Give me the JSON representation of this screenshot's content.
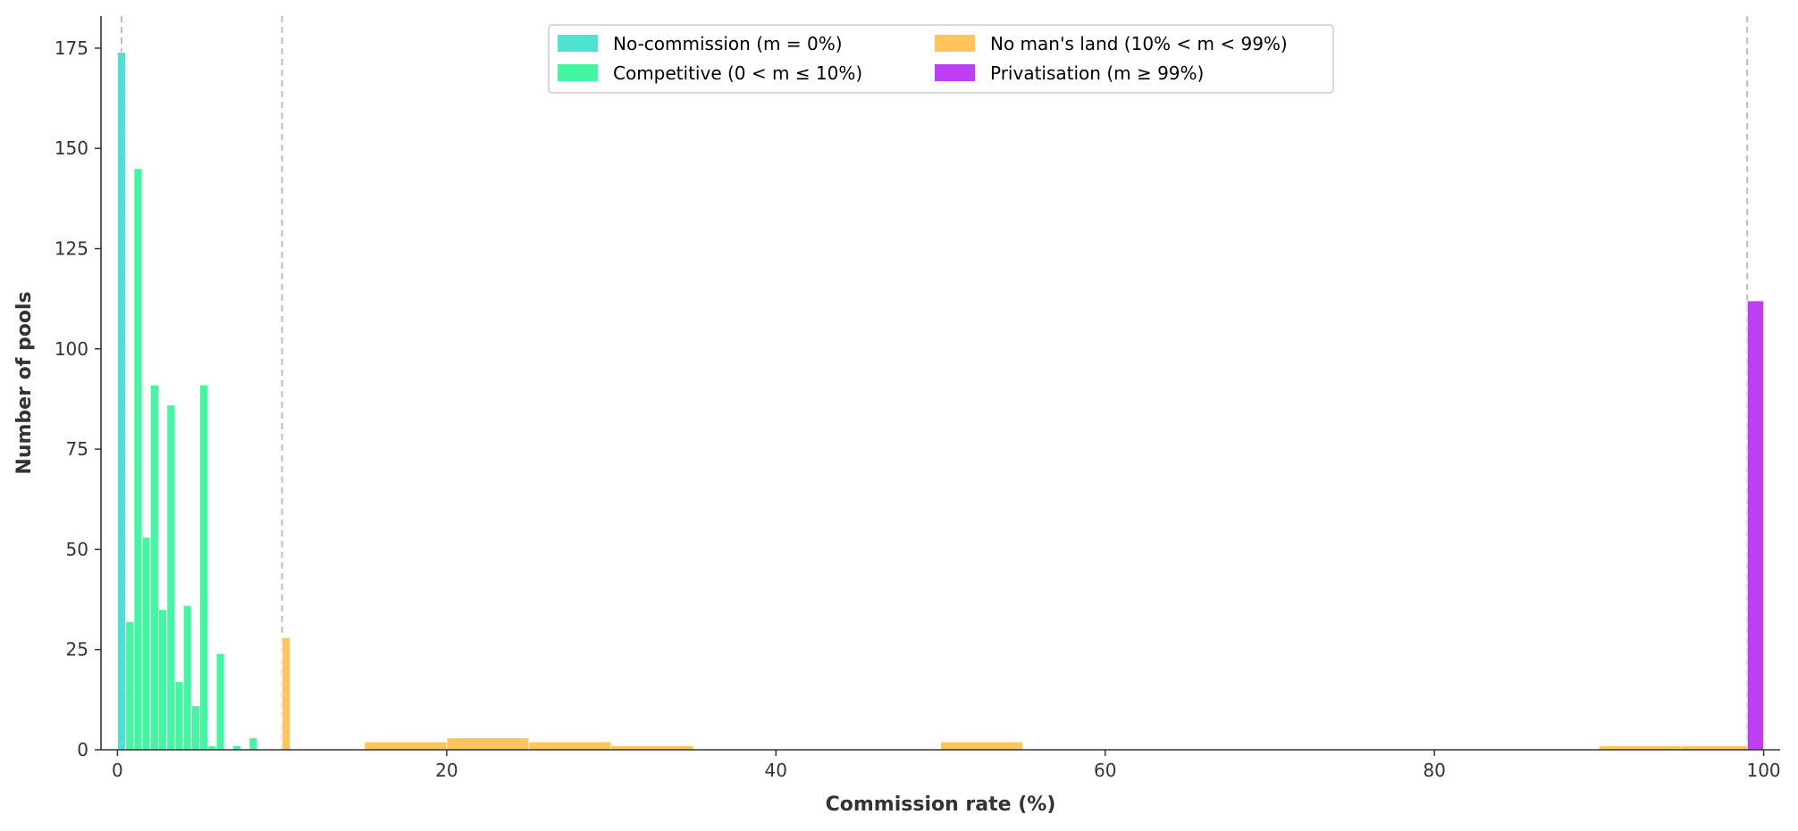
{
  "chart_data": {
    "type": "bar",
    "title": "",
    "xlabel": "Commission rate (%)",
    "ylabel": "Number of pools",
    "xlim": [
      -1,
      101
    ],
    "ylim": [
      0,
      183
    ],
    "xticks": [
      0,
      20,
      40,
      60,
      80,
      100
    ],
    "yticks": [
      0,
      25,
      50,
      75,
      100,
      125,
      150,
      175
    ],
    "grid": false,
    "legend_position": "top-center",
    "legend_columns": 2,
    "thresholds": [
      0.25,
      10,
      99
    ],
    "series": [
      {
        "name": "No-commission (m = 0%)",
        "color": "#40E0D0",
        "bins": [
          {
            "x0": 0,
            "x1": 0.5,
            "count": 174
          }
        ]
      },
      {
        "name": "Competitive (0 < m ≤ 10%)",
        "color": "#33F59A",
        "bins": [
          {
            "x0": 0.5,
            "x1": 1.0,
            "count": 32
          },
          {
            "x0": 1.0,
            "x1": 1.5,
            "count": 145
          },
          {
            "x0": 1.5,
            "x1": 2.0,
            "count": 53
          },
          {
            "x0": 2.0,
            "x1": 2.5,
            "count": 91
          },
          {
            "x0": 2.5,
            "x1": 3.0,
            "count": 35
          },
          {
            "x0": 3.0,
            "x1": 3.5,
            "count": 86
          },
          {
            "x0": 3.5,
            "x1": 4.0,
            "count": 17
          },
          {
            "x0": 4.0,
            "x1": 4.5,
            "count": 36
          },
          {
            "x0": 4.5,
            "x1": 5.0,
            "count": 11
          },
          {
            "x0": 5.0,
            "x1": 5.5,
            "count": 91
          },
          {
            "x0": 5.5,
            "x1": 6.0,
            "count": 1
          },
          {
            "x0": 6.0,
            "x1": 6.5,
            "count": 24
          },
          {
            "x0": 7.0,
            "x1": 7.5,
            "count": 1
          },
          {
            "x0": 8.0,
            "x1": 8.5,
            "count": 3
          }
        ]
      },
      {
        "name": "No man's land (10% < m < 99%)",
        "color": "#FFC04D",
        "bins": [
          {
            "x0": 10.0,
            "x1": 10.5,
            "count": 28
          },
          {
            "x0": 15,
            "x1": 20,
            "count": 2
          },
          {
            "x0": 20,
            "x1": 25,
            "count": 3
          },
          {
            "x0": 25,
            "x1": 30,
            "count": 2
          },
          {
            "x0": 30,
            "x1": 35,
            "count": 1
          },
          {
            "x0": 50,
            "x1": 55,
            "count": 2
          },
          {
            "x0": 90,
            "x1": 95,
            "count": 1
          },
          {
            "x0": 95,
            "x1": 99,
            "count": 1
          }
        ]
      },
      {
        "name": "Privatisation (m ≥ 99%)",
        "color": "#B72EF2",
        "bins": [
          {
            "x0": 99,
            "x1": 100,
            "count": 112
          }
        ]
      }
    ]
  }
}
